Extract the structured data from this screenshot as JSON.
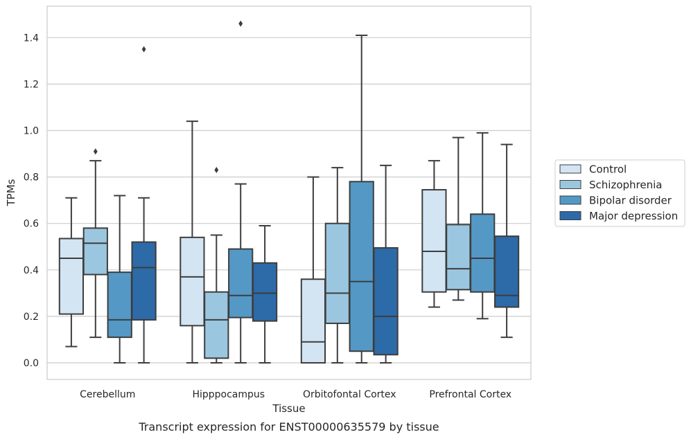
{
  "caption": "Transcript expression for ENST00000635579 by tissue",
  "chart_data": {
    "type": "box",
    "xlabel": "Tissue",
    "ylabel": "TPMs",
    "ylim": [
      -0.07,
      1.54
    ],
    "yticks": [
      "0.0",
      "0.2",
      "0.4",
      "0.6",
      "0.8",
      "1.0",
      "1.2",
      "1.4"
    ],
    "grid": "horizontal",
    "legend_position": "right",
    "categories": [
      "Cerebellum",
      "Hipppocampus",
      "Orbitofontal Cortex",
      "Prefrontal Cortex"
    ],
    "series": [
      {
        "name": "Control",
        "color": "#d3e4f3",
        "boxes": [
          {
            "whislo": 0.07,
            "q1": 0.21,
            "med": 0.45,
            "q3": 0.535,
            "whishi": 0.71,
            "fliers": []
          },
          {
            "whislo": 0.0,
            "q1": 0.16,
            "med": 0.37,
            "q3": 0.54,
            "whishi": 1.04,
            "fliers": []
          },
          {
            "whislo": 0.0,
            "q1": 0.0,
            "med": 0.09,
            "q3": 0.36,
            "whishi": 0.8,
            "fliers": []
          },
          {
            "whislo": 0.24,
            "q1": 0.305,
            "med": 0.48,
            "q3": 0.745,
            "whishi": 0.87,
            "fliers": []
          }
        ]
      },
      {
        "name": "Schizophrenia",
        "color": "#9bc6df",
        "boxes": [
          {
            "whislo": 0.11,
            "q1": 0.38,
            "med": 0.515,
            "q3": 0.58,
            "whishi": 0.87,
            "fliers": [
              0.91
            ]
          },
          {
            "whislo": 0.0,
            "q1": 0.02,
            "med": 0.185,
            "q3": 0.305,
            "whishi": 0.55,
            "fliers": [
              0.83
            ]
          },
          {
            "whislo": 0.0,
            "q1": 0.17,
            "med": 0.3,
            "q3": 0.6,
            "whishi": 0.84,
            "fliers": []
          },
          {
            "whislo": 0.27,
            "q1": 0.315,
            "med": 0.405,
            "q3": 0.595,
            "whishi": 0.97,
            "fliers": []
          }
        ]
      },
      {
        "name": "Bipolar disorder",
        "color": "#5498c6",
        "boxes": [
          {
            "whislo": 0.0,
            "q1": 0.11,
            "med": 0.185,
            "q3": 0.39,
            "whishi": 0.72,
            "fliers": []
          },
          {
            "whislo": 0.0,
            "q1": 0.195,
            "med": 0.29,
            "q3": 0.49,
            "whishi": 0.77,
            "fliers": [
              1.46
            ]
          },
          {
            "whislo": 0.0,
            "q1": 0.05,
            "med": 0.35,
            "q3": 0.78,
            "whishi": 1.41,
            "fliers": []
          },
          {
            "whislo": 0.19,
            "q1": 0.305,
            "med": 0.45,
            "q3": 0.64,
            "whishi": 0.99,
            "fliers": []
          }
        ]
      },
      {
        "name": "Major depression",
        "color": "#2d6aa8",
        "boxes": [
          {
            "whislo": 0.0,
            "q1": 0.185,
            "med": 0.41,
            "q3": 0.52,
            "whishi": 0.71,
            "fliers": [
              1.35
            ]
          },
          {
            "whislo": 0.0,
            "q1": 0.18,
            "med": 0.3,
            "q3": 0.43,
            "whishi": 0.59,
            "fliers": []
          },
          {
            "whislo": 0.0,
            "q1": 0.035,
            "med": 0.2,
            "q3": 0.495,
            "whishi": 0.85,
            "fliers": []
          },
          {
            "whislo": 0.11,
            "q1": 0.24,
            "med": 0.29,
            "q3": 0.545,
            "whishi": 0.94,
            "fliers": []
          }
        ]
      }
    ]
  }
}
